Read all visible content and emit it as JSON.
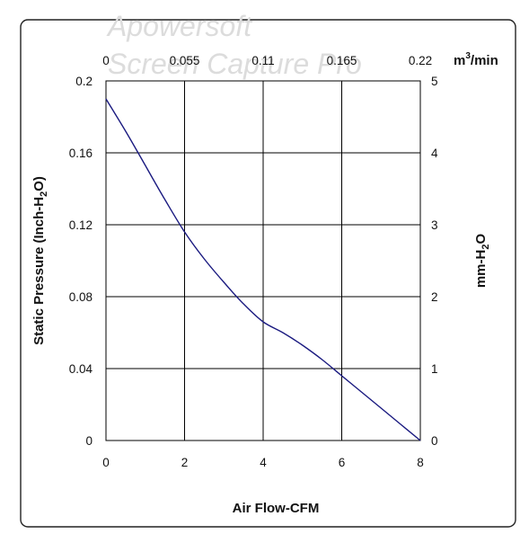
{
  "watermark": {
    "line1": "Apowersoft",
    "line2": "Screen Capture Pro"
  },
  "chart_data": {
    "type": "line",
    "title": "",
    "xlabel": "Air Flow-CFM",
    "ylabel_left": "Static Pressure (Inch-H",
    "ylabel_left_sub": "2",
    "ylabel_left_end": "O)",
    "ylabel_right_pre": "mm-H",
    "ylabel_right_sub": "2",
    "ylabel_right_end": "O",
    "x_top_unit_base": "m",
    "x_top_unit_sup": "3",
    "x_top_unit_end": "/min",
    "xlim": [
      0,
      8
    ],
    "ylim": [
      0,
      0.2
    ],
    "x_ticks": [
      "0",
      "2",
      "4",
      "6",
      "8"
    ],
    "y_ticks": [
      "0",
      "0.04",
      "0.08",
      "0.12",
      "0.16",
      "0.2"
    ],
    "x_top_ticks": [
      "0",
      "0.055",
      "0.11",
      "0.165",
      "0.22"
    ],
    "y_right_ticks": [
      "0",
      "1",
      "2",
      "3",
      "4",
      "5"
    ],
    "grid": true,
    "series": [
      {
        "color": "#1a1a80",
        "x": [
          0,
          0.5,
          1,
          1.5,
          2,
          2.5,
          3,
          3.5,
          4,
          4.5,
          5,
          5.5,
          6,
          6.5,
          7,
          7.5,
          8
        ],
        "y": [
          0.19,
          0.172,
          0.153,
          0.134,
          0.116,
          0.101,
          0.088,
          0.076,
          0.066,
          0.06,
          0.053,
          0.045,
          0.036,
          0.027,
          0.018,
          0.009,
          0.0
        ]
      }
    ]
  }
}
